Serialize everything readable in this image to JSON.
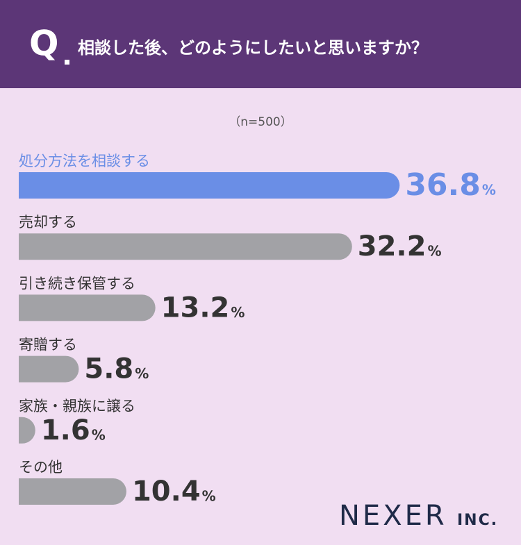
{
  "chart_data": {
    "type": "bar",
    "orientation": "horizontal",
    "question_mark": "Q",
    "title": "相談した後、どのようにしたいと思いますか？",
    "subtitle": "（n=500）",
    "categories": [
      "処分方法を相談する",
      "売却する",
      "引き続き保管する",
      "寄贈する",
      "家族・親族に譲る",
      "その他"
    ],
    "values": [
      36.8,
      32.2,
      13.2,
      5.8,
      1.6,
      10.4
    ],
    "value_unit": "%",
    "colors": [
      "#6a8ee6",
      "#a2a2a6",
      "#a2a2a6",
      "#a2a2a6",
      "#a2a2a6",
      "#a2a2a6"
    ],
    "brand": "NEXER",
    "brand_suffix": "INC."
  }
}
